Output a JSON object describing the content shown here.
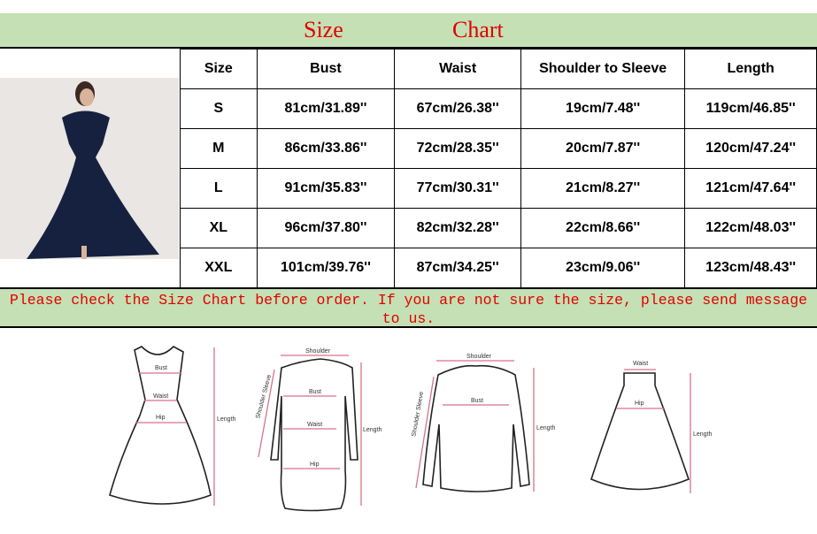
{
  "title": {
    "word1": "Size",
    "word2": "Chart"
  },
  "table": {
    "headers": [
      "Size",
      "Bust",
      "Waist",
      "Shoulder to Sleeve",
      "Length"
    ],
    "rows": [
      [
        "S",
        "81cm/31.89''",
        "67cm/26.38''",
        "19cm/7.48''",
        "119cm/46.85''"
      ],
      [
        "M",
        "86cm/33.86''",
        "72cm/28.35''",
        "20cm/7.87''",
        "120cm/47.24''"
      ],
      [
        "L",
        "91cm/35.83''",
        "77cm/30.31''",
        "21cm/8.27''",
        "121cm/47.64''"
      ],
      [
        "XL",
        "96cm/37.80''",
        "82cm/32.28''",
        "22cm/8.66''",
        "122cm/48.03''"
      ],
      [
        "XXL",
        "101cm/39.76''",
        "87cm/34.25''",
        "23cm/9.06''",
        "123cm/48.43''"
      ]
    ]
  },
  "note": "Please check the Size Chart before order. If you are not sure the size, please send message to us.",
  "sketches": {
    "dress": {
      "bust": "Bust",
      "waist": "Waist",
      "hip": "Hip",
      "length": "Length"
    },
    "long_dress": {
      "shoulder": "Shoulder",
      "sleeve": "Shoulder Sleeve",
      "bust": "Bust",
      "waist": "Waist",
      "hip": "Hip",
      "length": "Length"
    },
    "sweater": {
      "shoulder": "Shoulder",
      "sleeve": "Shoulder Sleeve",
      "bust": "Bust",
      "length": "Length"
    },
    "skirt": {
      "waist": "Waist",
      "hip": "Hip",
      "length": "Length"
    }
  },
  "colors": {
    "banner": "#c5e0b4",
    "title": "#e00000",
    "dress": "#16213f"
  }
}
